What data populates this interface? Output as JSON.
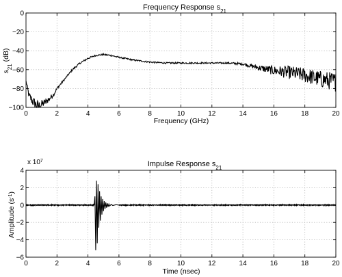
{
  "chart_data": [
    {
      "type": "line",
      "title": "Frequency Response",
      "title_sub": "21",
      "xlabel": "Frequency (GHz)",
      "ylabel": "s",
      "ylabel_sub": "21",
      "ylabel_suffix": " (dB)",
      "xlim": [
        0,
        20
      ],
      "ylim": [
        -100,
        0
      ],
      "xticks": [
        0,
        2,
        4,
        6,
        8,
        10,
        12,
        14,
        16,
        18,
        20
      ],
      "yticks": [
        0,
        -20,
        -40,
        -60,
        -80,
        -100
      ],
      "grid": true,
      "series": [
        {
          "x": [
            0,
            0.2,
            0.5,
            0.8,
            1.0,
            1.2,
            1.5,
            1.8,
            2.0,
            2.5,
            3.0,
            3.5,
            4.0,
            4.5,
            5.0,
            5.5,
            6.0,
            7.0,
            8.0,
            9.0,
            10.0,
            11.0,
            12.0,
            13.0,
            14.0,
            14.5,
            15.0,
            16.0,
            17.0,
            18.0,
            19.0,
            20.0
          ],
          "y": [
            -72,
            -88,
            -95,
            -99,
            -97,
            -95,
            -91,
            -86,
            -80,
            -70,
            -60,
            -53,
            -48,
            -45,
            -44,
            -45,
            -47,
            -50,
            -52,
            -53,
            -53,
            -53,
            -53,
            -53,
            -54,
            -56,
            -58,
            -61,
            -63,
            -66,
            -70,
            -73
          ],
          "noise": [
            1,
            4,
            6,
            6,
            5,
            4,
            3,
            2,
            1.5,
            1,
            1,
            1,
            1,
            0.8,
            0.8,
            0.8,
            0.8,
            0.8,
            0.8,
            0.8,
            0.8,
            0.8,
            0.8,
            0.8,
            1.5,
            2,
            3,
            5,
            7,
            8,
            9,
            10
          ]
        }
      ]
    },
    {
      "type": "line",
      "title": "Impulse Response",
      "title_sub": "21",
      "xlabel": "Time (nsec)",
      "ylabel": "Amplitude (s",
      "ylabel_sup": "-1",
      "ylabel_suffix": ")",
      "y_multiplier": "x 10",
      "y_multiplier_exp": "7",
      "xlim": [
        0,
        20
      ],
      "ylim": [
        -6,
        4
      ],
      "xticks": [
        0,
        2,
        4,
        6,
        8,
        10,
        12,
        14,
        16,
        18,
        20
      ],
      "yticks": [
        4,
        2,
        0,
        -2,
        -4,
        -6
      ],
      "grid": true,
      "series": [
        {
          "x": [
            0,
            4.4,
            4.45,
            4.5,
            4.55,
            4.6,
            4.65,
            4.7,
            4.75,
            4.8,
            4.85,
            4.9,
            4.95,
            5.0,
            5.05,
            5.1,
            5.15,
            5.2,
            5.25,
            5.3,
            5.35,
            5.4,
            5.5,
            5.6,
            5.8,
            6.0,
            20
          ],
          "y": [
            0,
            0,
            1.0,
            -5.2,
            2.8,
            -4.4,
            2.4,
            -2.6,
            1.6,
            -1.8,
            1.0,
            -1.1,
            0.7,
            -0.7,
            0.45,
            -0.45,
            0.3,
            -0.3,
            0.2,
            -0.2,
            0.12,
            -0.12,
            0.08,
            -0.06,
            0.04,
            0,
            0
          ]
        }
      ]
    }
  ]
}
